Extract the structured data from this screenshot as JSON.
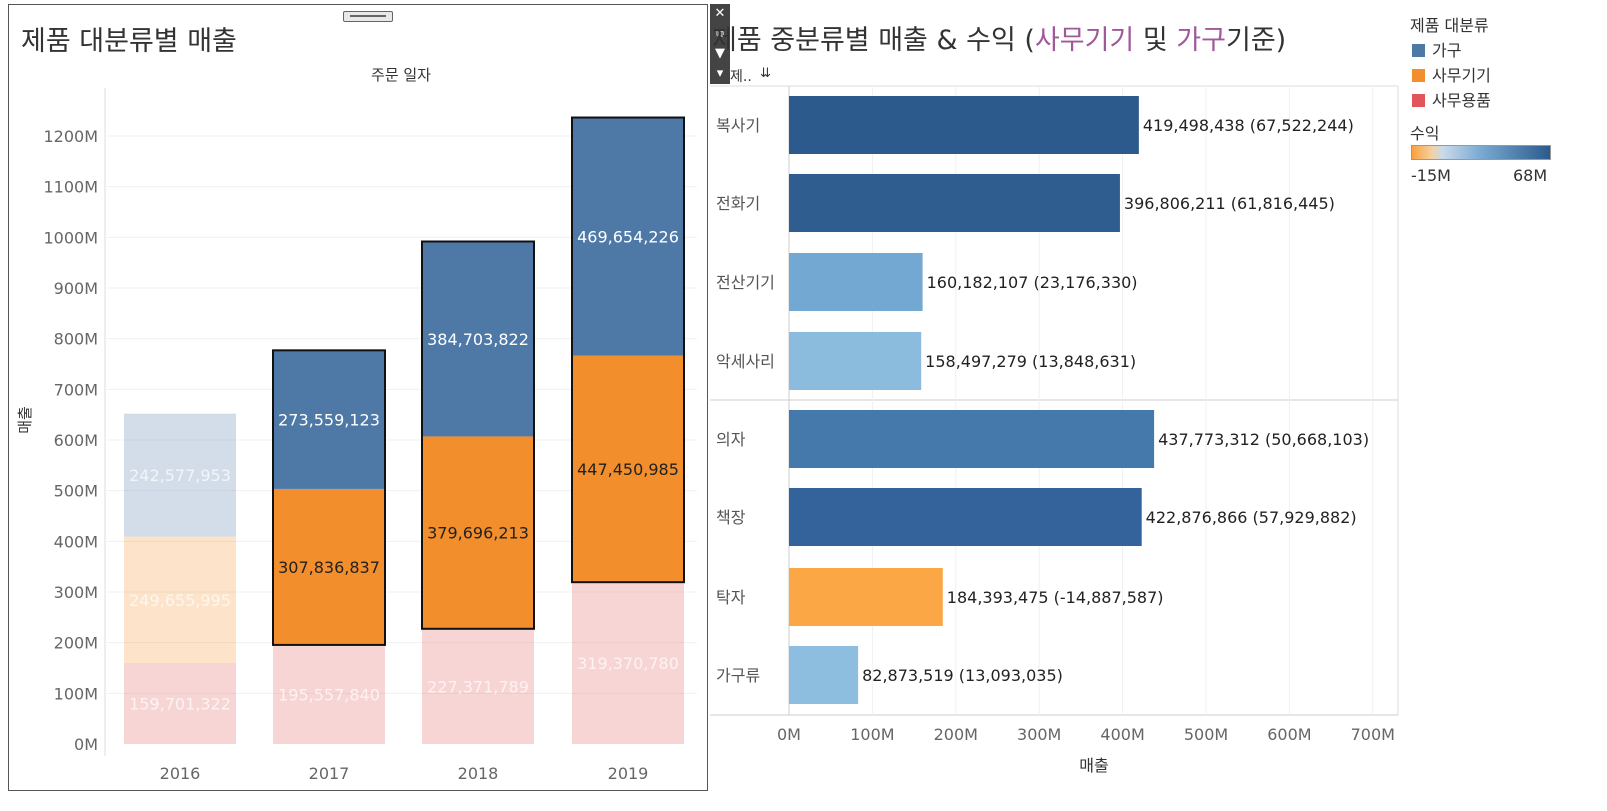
{
  "left_panel": {
    "title": "제품 대분류별 매출",
    "column_header": "주문 일자",
    "y_axis_label": "매출"
  },
  "right_panel": {
    "title_part1": "제품 중분류별 매출 & 수익 (",
    "title_accent1": "사무기기",
    "title_part2": " 및 ",
    "title_accent2": "가구",
    "title_part3": "기준)",
    "row_header": "제..",
    "x_axis_label": "매출"
  },
  "legend": {
    "title": "제품 대분류",
    "items": [
      {
        "label": "가구",
        "color": "#4e79a7"
      },
      {
        "label": "사무기기",
        "color": "#f28e2b"
      },
      {
        "label": "사무용품",
        "color": "#e15759"
      }
    ],
    "profit_title": "수익",
    "profit_min": "-15M",
    "profit_max": "68M"
  },
  "toolbar": {
    "close": "✕",
    "popout": "⧉",
    "filter": "▼",
    "more": "▾"
  },
  "chart_data": [
    {
      "type": "bar",
      "stacked": true,
      "title": "제품 대분류별 매출",
      "column_header": "주문 일자",
      "ylabel": "매출",
      "ylim": [
        0,
        1300000000
      ],
      "yticks": [
        "0M",
        "100M",
        "200M",
        "300M",
        "400M",
        "500M",
        "600M",
        "700M",
        "800M",
        "900M",
        "1000M",
        "1100M",
        "1200M"
      ],
      "categories": [
        "2016",
        "2017",
        "2018",
        "2019"
      ],
      "highlighted": [
        false,
        true,
        true,
        true
      ],
      "series": [
        {
          "name": "사무용품",
          "color": "#e15759",
          "values": [
            159701322,
            195557840,
            227371789,
            319370780
          ],
          "labels": [
            "159,701,322",
            "195,557,840",
            "227,371,789",
            "319,370,780"
          ]
        },
        {
          "name": "사무기기",
          "color": "#f28e2b",
          "values": [
            249655995,
            307836837,
            379696213,
            447450985
          ],
          "labels": [
            "249,655,995",
            "307,836,837",
            "379,696,213",
            "447,450,985"
          ]
        },
        {
          "name": "가구",
          "color": "#4e79a7",
          "values": [
            242577953,
            273559123,
            384703822,
            469654226
          ],
          "labels": [
            "242,577,953",
            "273,559,123",
            "384,703,822",
            "469,654,226"
          ]
        }
      ]
    },
    {
      "type": "bar",
      "orientation": "horizontal",
      "title": "제품 중분류별 매출 & 수익 (사무기기 및 가구기준)",
      "xlabel": "매출",
      "xlim": [
        0,
        730000000
      ],
      "xticks": [
        "0M",
        "100M",
        "200M",
        "300M",
        "400M",
        "500M",
        "600M",
        "700M"
      ],
      "color_scale": {
        "min": -15000000,
        "max": 68000000
      },
      "groups": [
        {
          "items": [
            {
              "name": "복사기",
              "sales": 419498438,
              "profit": 67522244,
              "label": "419,498,438 (67,522,244)",
              "color": "#2c5a8c"
            },
            {
              "name": "전화기",
              "sales": 396806211,
              "profit": 61816445,
              "label": "396,806,211 (61,816,445)",
              "color": "#2f5d90"
            },
            {
              "name": "전산기기",
              "sales": 160182107,
              "profit": 23176330,
              "label": "160,182,107 (23,176,330)",
              "color": "#73a8d2"
            },
            {
              "name": "악세사리",
              "sales": 158497279,
              "profit": 13848631,
              "label": "158,497,279 (13,848,631)",
              "color": "#8bbcde"
            }
          ]
        },
        {
          "items": [
            {
              "name": "의자",
              "sales": 437773312,
              "profit": 50668103,
              "label": "437,773,312 (50,668,103)",
              "color": "#4579ab"
            },
            {
              "name": "책장",
              "sales": 422876866,
              "profit": 57929882,
              "label": "422,876,866 (57,929,882)",
              "color": "#33639a"
            },
            {
              "name": "탁자",
              "sales": 184393475,
              "profit": -14887587,
              "label": "184,393,475 (-14,887,587)",
              "color": "#fba745"
            },
            {
              "name": "가구류",
              "sales": 82873519,
              "profit": 13093035,
              "label": "82,873,519 (13,093,035)",
              "color": "#8dbedf"
            }
          ]
        }
      ]
    }
  ]
}
